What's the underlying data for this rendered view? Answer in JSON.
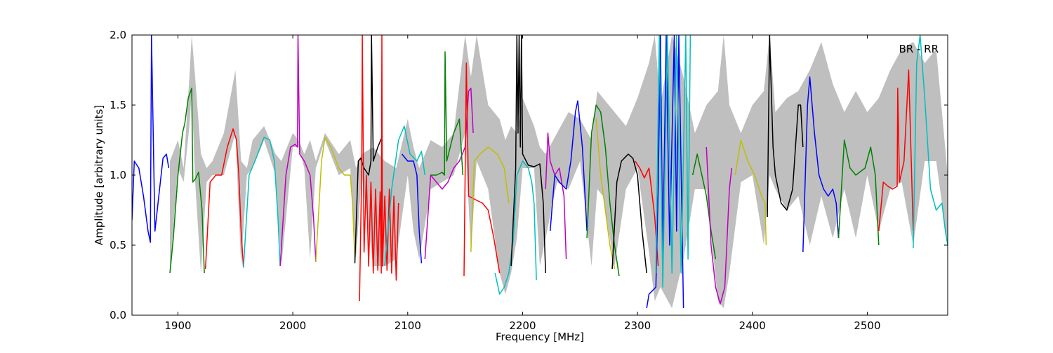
{
  "chart_data": {
    "type": "line",
    "title": "",
    "xlabel": "Frequency [MHz]",
    "ylabel": "Amplitude [arbitrary units]",
    "xlim": [
      1860,
      2570
    ],
    "ylim": [
      0.0,
      2.0
    ],
    "x_ticks": [
      1900,
      2000,
      2100,
      2200,
      2300,
      2400,
      2500
    ],
    "y_ticks": [
      0.0,
      0.5,
      1.0,
      1.5,
      2.0
    ],
    "x_tick_labels": [
      "1900",
      "2000",
      "2100",
      "2200",
      "2300",
      "2400",
      "2500"
    ],
    "y_tick_labels": [
      "0.0",
      "0.5",
      "1.0",
      "1.5",
      "2.0"
    ],
    "annotation": "BR - RR",
    "grid": false,
    "envelope": {
      "color": "#bfbfbf",
      "x": [
        1893,
        1900,
        1905,
        1910,
        1912,
        1915,
        1920,
        1925,
        1930,
        1940,
        1950,
        1955,
        1960,
        1965,
        1975,
        1985,
        1990,
        2000,
        2005,
        2010,
        2015,
        2020,
        2028,
        2040,
        2050,
        2055,
        2060,
        2070,
        2080,
        2090,
        2100,
        2105,
        2110,
        2120,
        2130,
        2140,
        2150,
        2155,
        2160,
        2170,
        2180,
        2185,
        2190,
        2195,
        2200,
        2210,
        2215,
        2220,
        2230,
        2240,
        2250,
        2260,
        2265,
        2270,
        2280,
        2290,
        2300,
        2310,
        2315,
        2320,
        2330,
        2340,
        2350,
        2360,
        2370,
        2375,
        2380,
        2390,
        2400,
        2410,
        2415,
        2420,
        2430,
        2440,
        2450,
        2460,
        2470,
        2480,
        2490,
        2500,
        2510,
        2520,
        2530,
        2540,
        2550,
        2560,
        2570
      ],
      "upper": [
        1.1,
        1.25,
        1.05,
        1.7,
        2.0,
        1.7,
        1.15,
        1.05,
        1.1,
        1.3,
        1.75,
        1.1,
        1.05,
        1.25,
        1.35,
        1.15,
        1.1,
        1.3,
        1.25,
        1.15,
        1.25,
        1.1,
        1.3,
        1.15,
        1.25,
        1.05,
        1.15,
        1.2,
        1.1,
        1.05,
        1.4,
        1.2,
        1.05,
        1.25,
        1.2,
        1.3,
        2.0,
        1.7,
        2.0,
        1.5,
        1.4,
        1.25,
        1.35,
        1.3,
        1.55,
        1.35,
        1.2,
        1.15,
        1.3,
        1.45,
        1.4,
        1.25,
        1.6,
        1.55,
        1.45,
        1.35,
        1.55,
        1.8,
        2.0,
        1.5,
        2.0,
        1.7,
        1.3,
        1.5,
        1.6,
        2.0,
        1.5,
        1.3,
        1.5,
        1.6,
        2.0,
        1.45,
        1.55,
        1.6,
        1.75,
        1.95,
        1.65,
        1.45,
        1.6,
        1.45,
        1.55,
        1.75,
        1.9,
        1.95,
        1.8,
        1.9,
        1.0
      ],
      "lower": [
        0.3,
        1.05,
        0.95,
        1.35,
        1.6,
        0.95,
        0.3,
        0.95,
        1.0,
        1.0,
        1.3,
        0.35,
        1.0,
        1.05,
        1.25,
        1.0,
        0.35,
        1.2,
        1.2,
        1.05,
        0.4,
        1.05,
        1.25,
        1.0,
        1.05,
        0.4,
        1.0,
        0.35,
        0.35,
        0.4,
        1.0,
        0.6,
        0.4,
        0.9,
        0.95,
        1.0,
        1.3,
        0.45,
        1.1,
        0.9,
        0.3,
        0.15,
        0.3,
        0.55,
        1.05,
        1.05,
        0.35,
        0.55,
        0.95,
        0.9,
        1.1,
        0.35,
        0.9,
        0.85,
        0.35,
        0.9,
        1.05,
        0.45,
        0.1,
        0.2,
        0.05,
        0.4,
        0.9,
        0.9,
        0.1,
        0.05,
        0.3,
        0.95,
        1.0,
        0.5,
        1.0,
        0.9,
        0.75,
        0.85,
        0.5,
        0.85,
        0.55,
        0.9,
        0.55,
        1.0,
        0.6,
        0.9,
        0.95,
        0.5,
        1.1,
        1.1,
        0.5
      ]
    },
    "series": [
      {
        "color": "#0000ff",
        "x": [
          1860,
          1862,
          1866,
          1870,
          1874,
          1876,
          1877,
          1880,
          1884,
          1887,
          1890,
          1892
        ],
        "y": [
          0.68,
          1.1,
          1.05,
          0.85,
          0.6,
          0.52,
          2.0,
          0.6,
          0.9,
          1.12,
          1.15,
          1.05
        ]
      },
      {
        "color": "#008000",
        "x": [
          1893,
          1896,
          1900,
          1904,
          1906,
          1909,
          1912,
          1913,
          1915,
          1918,
          1921,
          1923
        ],
        "y": [
          0.3,
          0.55,
          1.0,
          1.3,
          1.37,
          1.55,
          1.62,
          0.95,
          0.97,
          1.02,
          0.75,
          0.3
        ]
      },
      {
        "color": "#ff0000",
        "x": [
          1924,
          1928,
          1933,
          1938,
          1943,
          1948,
          1951,
          1953,
          1955,
          1957
        ],
        "y": [
          0.33,
          0.95,
          1.0,
          1.0,
          1.2,
          1.33,
          1.25,
          1.0,
          0.6,
          0.34
        ]
      },
      {
        "color": "#00bfbf",
        "x": [
          1957,
          1962,
          1968,
          1975,
          1980,
          1984,
          1987,
          1989
        ],
        "y": [
          0.34,
          1.0,
          1.12,
          1.27,
          1.25,
          1.1,
          0.7,
          0.35
        ]
      },
      {
        "color": "#bf00bf",
        "x": [
          1989,
          1994,
          1998,
          2002,
          2004,
          2004.5,
          2006,
          2010,
          2015,
          2018,
          2020
        ],
        "y": [
          0.35,
          1.0,
          1.2,
          1.22,
          1.2,
          2.0,
          1.15,
          1.1,
          1.0,
          0.7,
          0.38
        ]
      },
      {
        "color": "#bfbf00",
        "x": [
          2020,
          2025,
          2028,
          2033,
          2040,
          2045,
          2050,
          2052,
          2054
        ],
        "y": [
          0.38,
          1.1,
          1.27,
          1.2,
          1.05,
          1.0,
          1.0,
          0.8,
          0.4
        ]
      },
      {
        "color": "#000000",
        "x": [
          2054,
          2057,
          2059,
          2062,
          2066,
          2068,
          2068.5,
          2070,
          2074,
          2078
        ],
        "y": [
          0.37,
          1.1,
          1.12,
          1.05,
          1.0,
          1.1,
          2.0,
          1.1,
          1.2,
          1.28
        ]
      },
      {
        "color": "#ff0000",
        "x": [
          2058,
          2060,
          2060.5,
          2062,
          2064,
          2066,
          2068,
          2070,
          2072,
          2074,
          2076,
          2077,
          2077.5,
          2078,
          2080,
          2082,
          2084,
          2086,
          2088,
          2090,
          2092
        ],
        "y": [
          0.1,
          1.05,
          2.0,
          0.45,
          1.0,
          0.35,
          0.95,
          0.3,
          0.9,
          0.32,
          0.88,
          0.3,
          2.0,
          0.35,
          0.85,
          0.32,
          0.9,
          0.3,
          0.85,
          0.25,
          0.8
        ]
      },
      {
        "color": "#00bfbf",
        "x": [
          2080,
          2086,
          2092,
          2097,
          2102,
          2108,
          2112,
          2115
        ],
        "y": [
          0.35,
          0.9,
          1.25,
          1.35,
          1.15,
          1.1,
          1.17,
          1.0
        ]
      },
      {
        "color": "#0000ff",
        "x": [
          2095,
          2100,
          2105,
          2108,
          2110,
          2112
        ],
        "y": [
          1.15,
          1.1,
          1.1,
          1.0,
          0.6,
          0.37
        ]
      },
      {
        "color": "#bf00bf",
        "x": [
          2115,
          2120,
          2125,
          2130,
          2135,
          2140,
          2145,
          2150,
          2153,
          2155,
          2157
        ],
        "y": [
          0.4,
          1.0,
          0.95,
          0.9,
          0.95,
          1.05,
          1.1,
          1.2,
          1.6,
          1.62,
          1.3
        ]
      },
      {
        "color": "#008000",
        "x": [
          2120,
          2125,
          2130,
          2132,
          2132.5,
          2134,
          2140,
          2145,
          2148
        ],
        "y": [
          1.0,
          1.0,
          1.02,
          1.0,
          1.88,
          1.1,
          1.3,
          1.4,
          1.0
        ]
      },
      {
        "color": "#ff0000",
        "x": [
          2149,
          2151,
          2153,
          2160,
          2165,
          2170,
          2175,
          2180
        ],
        "y": [
          0.28,
          1.8,
          0.85,
          0.82,
          0.8,
          0.75,
          0.55,
          0.3
        ]
      },
      {
        "color": "#bfbf00",
        "x": [
          2155,
          2158,
          2163,
          2170,
          2178,
          2184,
          2188
        ],
        "y": [
          0.45,
          1.1,
          1.15,
          1.2,
          1.15,
          1.05,
          0.8
        ]
      },
      {
        "color": "#00bfbf",
        "x": [
          2176,
          2180,
          2184,
          2188,
          2192,
          2195
        ],
        "y": [
          0.3,
          0.15,
          0.2,
          0.3,
          0.55,
          1.0
        ]
      },
      {
        "color": "#000000",
        "x": [
          2190,
          2194,
          2195,
          2196,
          2197,
          2198,
          2199,
          2200,
          2205,
          2210,
          2215,
          2218,
          2220
        ],
        "y": [
          0.35,
          1.05,
          2.0,
          1.3,
          2.0,
          1.2,
          2.0,
          1.15,
          1.07,
          1.06,
          1.08,
          0.8,
          0.3
        ]
      },
      {
        "color": "#00bfbf",
        "x": [
          2195,
          2200,
          2205,
          2208,
          2210,
          2212
        ],
        "y": [
          1.0,
          1.1,
          1.05,
          0.95,
          0.8,
          0.25
        ]
      },
      {
        "color": "#bf00bf",
        "x": [
          2220,
          2222,
          2224,
          2228,
          2232,
          2236,
          2238
        ],
        "y": [
          0.9,
          1.3,
          1.1,
          1.0,
          1.05,
          0.85,
          0.4
        ]
      },
      {
        "color": "#0000ff",
        "x": [
          2224,
          2228,
          2232,
          2238,
          2242,
          2246,
          2248,
          2252,
          2256
        ],
        "y": [
          0.6,
          1.0,
          0.95,
          0.9,
          1.1,
          1.45,
          1.53,
          1.2,
          0.6
        ]
      },
      {
        "color": "#008000",
        "x": [
          2256,
          2260,
          2264,
          2268,
          2272,
          2276,
          2280,
          2284
        ],
        "y": [
          0.55,
          1.3,
          1.5,
          1.45,
          1.2,
          0.8,
          0.5,
          0.28
        ]
      },
      {
        "color": "#bfbf00",
        "x": [
          2264,
          2268,
          2272,
          2276,
          2280
        ],
        "y": [
          1.4,
          1.0,
          0.75,
          0.5,
          0.33
        ]
      },
      {
        "color": "#000000",
        "x": [
          2278,
          2282,
          2286,
          2292,
          2296,
          2300,
          2304,
          2308
        ],
        "y": [
          0.33,
          0.95,
          1.1,
          1.15,
          1.12,
          1.0,
          0.6,
          0.3
        ]
      },
      {
        "color": "#ff0000",
        "x": [
          2298,
          2302,
          2306,
          2310,
          2315,
          2318
        ],
        "y": [
          1.1,
          1.05,
          0.98,
          1.05,
          0.7,
          0.35
        ]
      },
      {
        "color": "#0000ff",
        "x": [
          2308,
          2310,
          2316,
          2318,
          2320,
          2322,
          2325,
          2328,
          2332,
          2334,
          2336,
          2340
        ],
        "y": [
          0.05,
          0.15,
          0.2,
          0.9,
          2.0,
          0.4,
          2.0,
          0.5,
          2.0,
          0.6,
          2.0,
          0.05
        ]
      },
      {
        "color": "#00bfbf",
        "x": [
          2316,
          2319,
          2322,
          2326,
          2330,
          2334,
          2338,
          2342,
          2344,
          2346
        ],
        "y": [
          0.3,
          2.0,
          0.2,
          2.0,
          0.3,
          2.0,
          0.3,
          2.0,
          0.4,
          2.0
        ]
      },
      {
        "color": "#008000",
        "x": [
          2348,
          2352,
          2356,
          2360,
          2364,
          2368
        ],
        "y": [
          1.0,
          1.15,
          1.0,
          0.85,
          0.6,
          0.4
        ]
      },
      {
        "color": "#bf00bf",
        "x": [
          2360,
          2364,
          2368,
          2372,
          2376,
          2380,
          2382
        ],
        "y": [
          1.2,
          0.5,
          0.2,
          0.08,
          0.2,
          0.9,
          1.05
        ]
      },
      {
        "color": "#bfbf00",
        "x": [
          2385,
          2390,
          2396,
          2402,
          2408,
          2411,
          2412
        ],
        "y": [
          1.0,
          1.25,
          1.1,
          1.0,
          0.85,
          0.8,
          0.5
        ]
      },
      {
        "color": "#000000",
        "x": [
          2413,
          2415,
          2418,
          2420,
          2425,
          2430,
          2435,
          2440,
          2442,
          2444
        ],
        "y": [
          0.7,
          2.0,
          1.2,
          1.0,
          0.8,
          0.75,
          0.9,
          1.5,
          1.5,
          1.2
        ]
      },
      {
        "color": "#0000ff",
        "x": [
          2444,
          2448,
          2450,
          2454,
          2458,
          2462,
          2466,
          2470,
          2473,
          2475
        ],
        "y": [
          0.45,
          1.5,
          1.7,
          1.3,
          1.0,
          0.9,
          0.85,
          0.9,
          0.8,
          0.55
        ]
      },
      {
        "color": "#008000",
        "x": [
          2475,
          2480,
          2485,
          2490,
          2498,
          2503,
          2507,
          2510
        ],
        "y": [
          0.55,
          1.25,
          1.05,
          1.0,
          1.05,
          1.2,
          1.0,
          0.5
        ]
      },
      {
        "color": "#ff0000",
        "x": [
          2510,
          2514,
          2518,
          2522,
          2526,
          2526.5,
          2528,
          2532,
          2536,
          2540
        ],
        "y": [
          0.6,
          0.95,
          0.92,
          0.9,
          0.92,
          1.62,
          0.95,
          1.1,
          1.75,
          0.6
        ]
      },
      {
        "color": "#00bfbf",
        "x": [
          2540,
          2543,
          2546,
          2550,
          2555,
          2560,
          2565,
          2568,
          2570
        ],
        "y": [
          0.48,
          1.8,
          2.0,
          1.55,
          0.9,
          0.75,
          0.8,
          0.6,
          0.5
        ]
      }
    ]
  }
}
